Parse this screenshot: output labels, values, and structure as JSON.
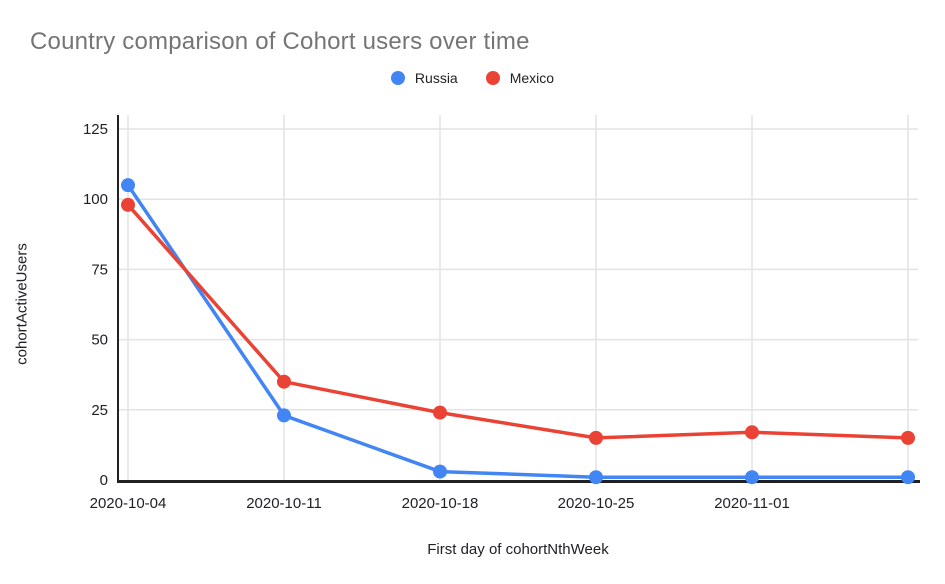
{
  "chart_title": "Country comparison of Cohort users over time",
  "legend": {
    "items": [
      {
        "label": "Russia"
      },
      {
        "label": "Mexico"
      }
    ]
  },
  "axes": {
    "y_title": "cohortActiveUsers",
    "x_title": "First day of cohortNthWeek"
  },
  "colors": {
    "background": "#ffffff",
    "title": "#757575",
    "axis_text": "#202124",
    "gridline": "#e3e3e3",
    "axis_line": "#212121",
    "russia_blue": "#4285f4",
    "mexico_red": "#ea4335"
  },
  "chart_data": {
    "type": "line",
    "title": "Country comparison of Cohort users over time",
    "xlabel": "First day of cohortNthWeek",
    "ylabel": "cohortActiveUsers",
    "categories": [
      "2020-10-04",
      "2020-10-11",
      "2020-10-18",
      "2020-10-25",
      "2020-11-01",
      ""
    ],
    "series": [
      {
        "name": "Russia",
        "color": "#4285f4",
        "values": [
          105,
          23,
          3,
          1,
          1,
          1
        ]
      },
      {
        "name": "Mexico",
        "color": "#ea4335",
        "values": [
          98,
          35,
          24,
          15,
          17,
          15
        ]
      }
    ],
    "ylim": [
      0,
      125
    ],
    "yticks": [
      0,
      25,
      50,
      75,
      100,
      125
    ],
    "grid": true,
    "legend_position": "top",
    "marker": "circle"
  }
}
